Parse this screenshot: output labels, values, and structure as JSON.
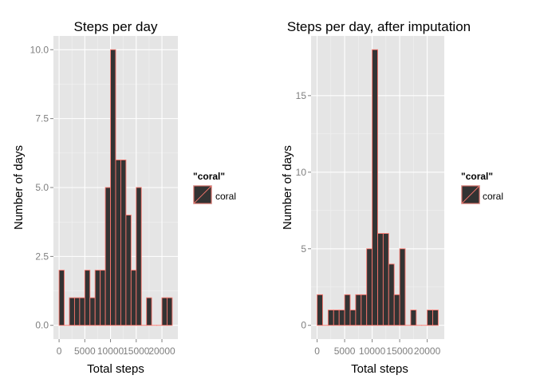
{
  "chart_data": [
    {
      "type": "bar",
      "title": "Steps per day",
      "xlabel": "Total steps",
      "ylabel": "Number of days",
      "bin_width": 1000,
      "x_bin_starts": [
        0,
        1000,
        2000,
        3000,
        4000,
        5000,
        6000,
        7000,
        8000,
        9000,
        10000,
        11000,
        12000,
        13000,
        14000,
        15000,
        16000,
        17000,
        18000,
        19000,
        20000,
        21000
      ],
      "values": [
        2,
        0,
        1,
        1,
        1,
        2,
        1,
        2,
        2,
        5,
        10,
        6,
        6,
        4,
        2,
        5,
        0,
        1,
        0,
        0,
        1,
        1
      ],
      "x_ticks": [
        0,
        5000,
        10000,
        15000,
        20000
      ],
      "x_tick_labels": [
        "0",
        "5000",
        "10000",
        "15000",
        "20000"
      ],
      "y_ticks": [
        0,
        2.5,
        5,
        7.5,
        10
      ],
      "y_tick_labels": [
        "0.0",
        "2.5",
        "5.0",
        "7.5",
        "10.0"
      ],
      "xlim": [
        -1100,
        23100
      ],
      "ylim": [
        -0.5,
        10.5
      ],
      "grid": true,
      "legend_position": "right",
      "legend_title": "\"coral\"",
      "legend_label": "coral",
      "fill_color": "#333333",
      "outline_color": "#f8766d",
      "panel_color": "#e5e5e5"
    },
    {
      "type": "bar",
      "title": "Steps per day, after imputation",
      "xlabel": "Total steps",
      "ylabel": "Number of days",
      "bin_width": 1000,
      "x_bin_starts": [
        0,
        1000,
        2000,
        3000,
        4000,
        5000,
        6000,
        7000,
        8000,
        9000,
        10000,
        11000,
        12000,
        13000,
        14000,
        15000,
        16000,
        17000,
        18000,
        19000,
        20000,
        21000
      ],
      "values": [
        2,
        0,
        1,
        1,
        1,
        2,
        1,
        2,
        2,
        5,
        18,
        6,
        6,
        4,
        2,
        5,
        0,
        1,
        0,
        0,
        1,
        1
      ],
      "x_ticks": [
        0,
        5000,
        10000,
        15000,
        20000
      ],
      "x_tick_labels": [
        "0",
        "5000",
        "10000",
        "15000",
        "20000"
      ],
      "y_ticks": [
        0,
        5,
        10,
        15
      ],
      "y_tick_labels": [
        "0",
        "5",
        "10",
        "15"
      ],
      "xlim": [
        -1100,
        23100
      ],
      "ylim": [
        -0.9,
        18.9
      ],
      "grid": true,
      "legend_position": "right",
      "legend_title": "\"coral\"",
      "legend_label": "coral",
      "fill_color": "#333333",
      "outline_color": "#f8766d",
      "panel_color": "#e5e5e5"
    }
  ]
}
